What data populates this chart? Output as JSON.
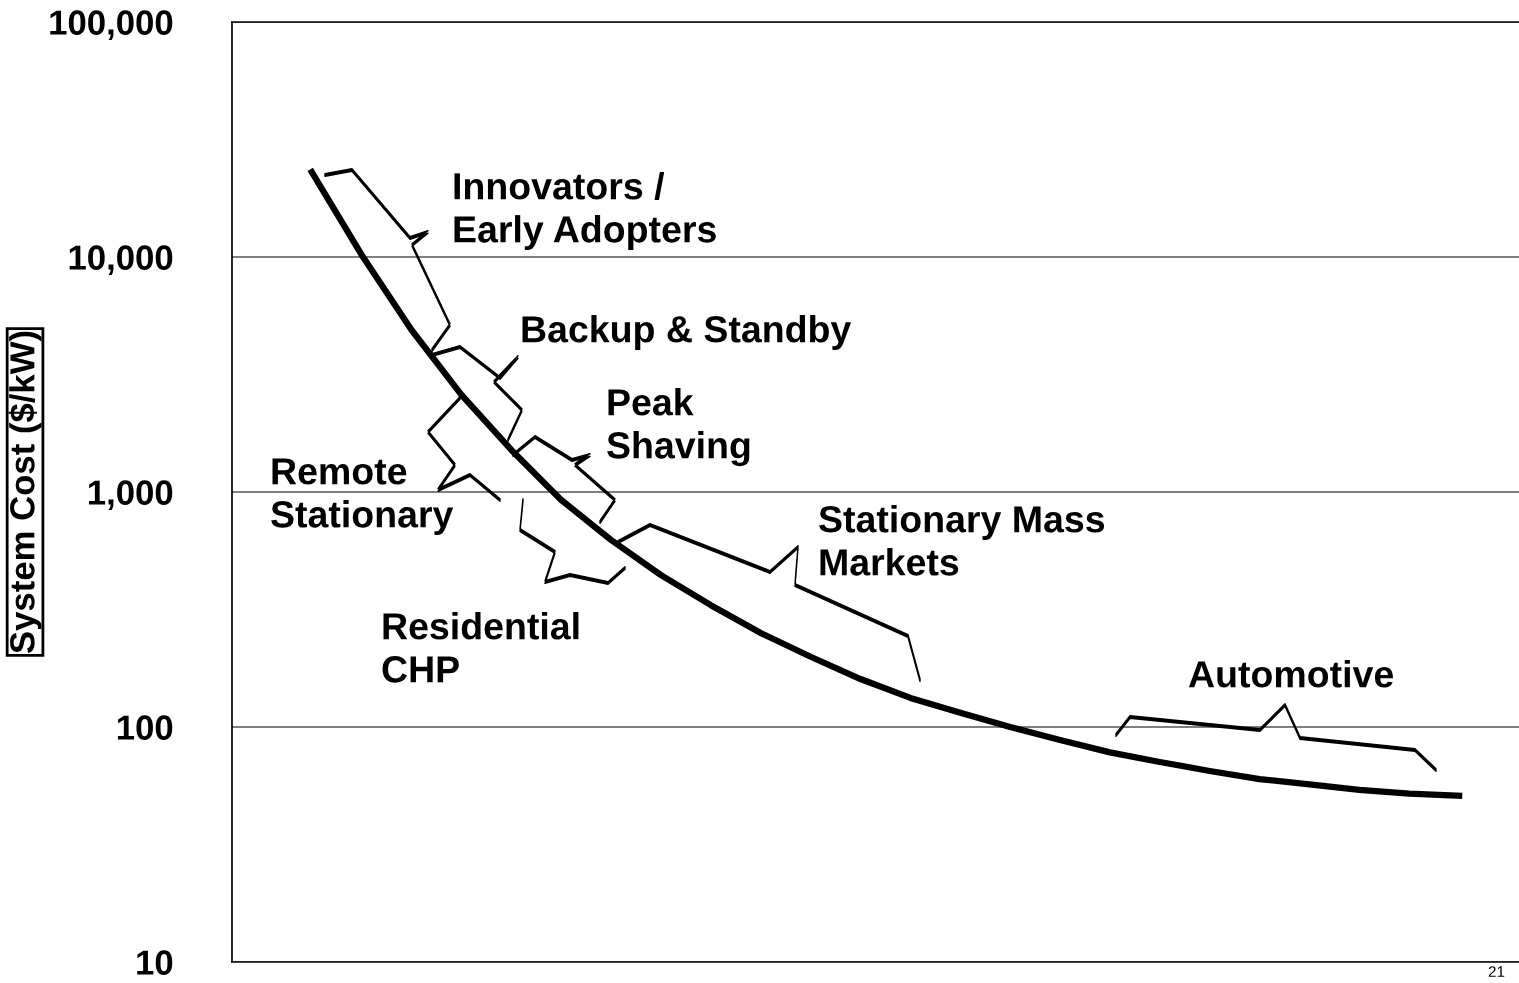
{
  "chart_data": {
    "type": "line",
    "ylabel": "System Cost ($/kW)",
    "categories": [
      null,
      null,
      null,
      null,
      null,
      null,
      null,
      null,
      null,
      null,
      null,
      null,
      null,
      null,
      null,
      null,
      null,
      null,
      null,
      null,
      null,
      null,
      null,
      null
    ],
    "series": [
      {
        "color": "#000000",
        "values": [
          23000,
          10200,
          4890,
          2590,
          1510,
          925,
          625,
          443,
          330,
          251,
          199,
          160,
          133,
          115,
          100,
          88,
          78,
          71,
          65,
          60,
          57,
          54,
          52,
          51
        ]
      }
    ],
    "log": "y",
    "ylim": [
      10,
      100000
    ],
    "yticks": [
      {
        "value": 10,
        "label": "10"
      },
      {
        "value": 100,
        "label": "100"
      },
      {
        "value": 1000,
        "label": "1,000"
      },
      {
        "value": 10000,
        "label": "10,000"
      },
      {
        "value": 100000,
        "label": "100,000"
      }
    ],
    "grid": "y",
    "legend": false,
    "tick_labels": "y",
    "marker": "none",
    "line_style": "solid",
    "annotations": [
      "Innovators /\nEarly Adopters",
      "Backup & Standby",
      "Peak\nShaving",
      "Remote\nStationary",
      "Residential\nCHP",
      "Stationary Mass\nMarkets",
      "Automotive",
      "21"
    ]
  }
}
